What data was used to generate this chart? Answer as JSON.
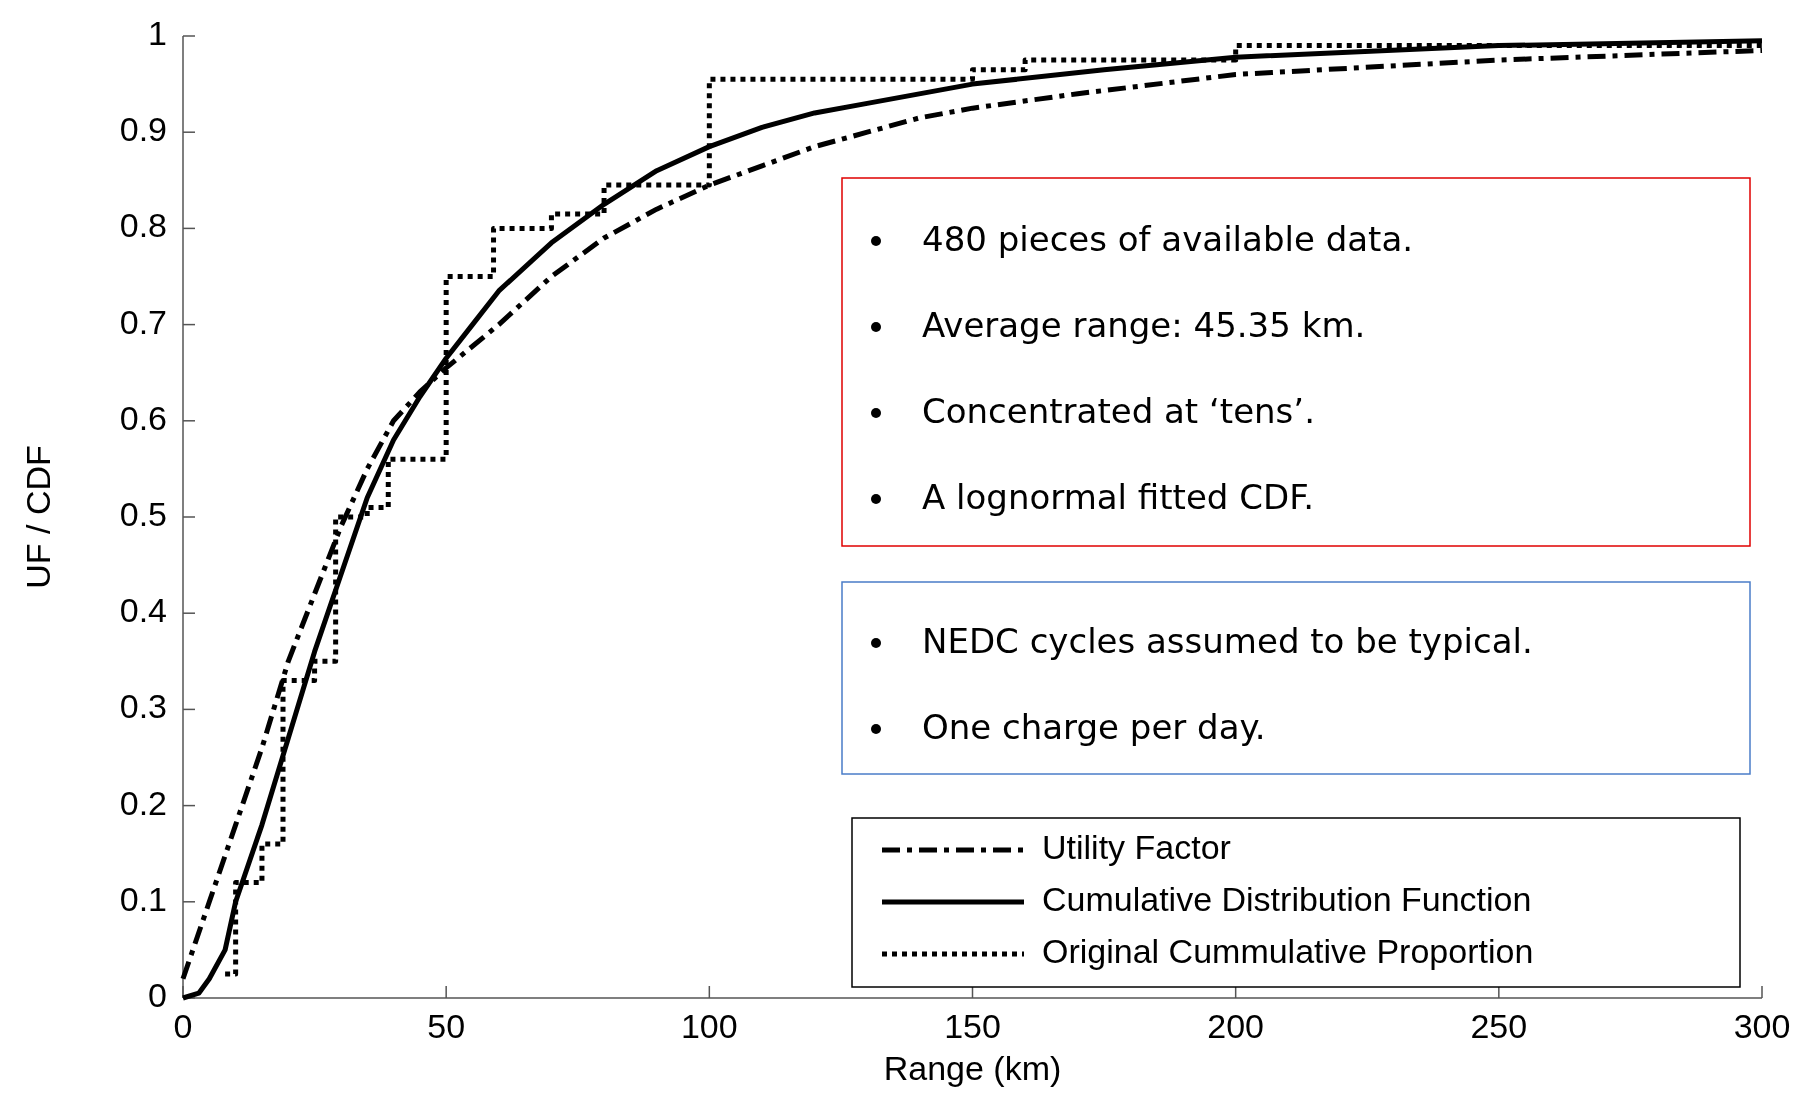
{
  "chart_data": {
    "type": "line",
    "xlabel": "Range (km)",
    "ylabel": "UF / CDF",
    "xlim": [
      0,
      300
    ],
    "ylim": [
      0,
      1
    ],
    "xticks": [
      0,
      50,
      100,
      150,
      200,
      250,
      300
    ],
    "yticks": [
      0,
      0.1,
      0.2,
      0.3,
      0.4,
      0.5,
      0.6,
      0.7,
      0.8,
      0.9,
      1
    ],
    "grid": false,
    "legend": "bottom right",
    "marker": "none",
    "series": [
      {
        "name": "Utility Factor",
        "color": "#000000",
        "line_style": "dashdot",
        "x": [
          0,
          5,
          10,
          15,
          20,
          25,
          30,
          35,
          40,
          45,
          50,
          60,
          70,
          80,
          90,
          100,
          110,
          120,
          130,
          140,
          150,
          170,
          200,
          250,
          300
        ],
        "values": [
          0.02,
          0.1,
          0.18,
          0.26,
          0.35,
          0.42,
          0.49,
          0.55,
          0.6,
          0.63,
          0.655,
          0.7,
          0.75,
          0.79,
          0.82,
          0.845,
          0.865,
          0.885,
          0.9,
          0.915,
          0.925,
          0.94,
          0.96,
          0.975,
          0.985
        ]
      },
      {
        "name": "Cumulative Distribution Function",
        "color": "#000000",
        "line_style": "solid",
        "x": [
          0,
          3,
          5,
          8,
          10,
          15,
          20,
          25,
          30,
          35,
          40,
          45,
          50,
          55,
          60,
          70,
          80,
          90,
          100,
          110,
          120,
          130,
          150,
          175,
          200,
          250,
          300
        ],
        "values": [
          0,
          0.005,
          0.02,
          0.05,
          0.1,
          0.18,
          0.27,
          0.36,
          0.44,
          0.52,
          0.58,
          0.625,
          0.665,
          0.7,
          0.735,
          0.785,
          0.825,
          0.86,
          0.885,
          0.905,
          0.92,
          0.93,
          0.95,
          0.965,
          0.978,
          0.99,
          0.995
        ]
      },
      {
        "name": "Original Cummulative Proportion",
        "type": "step",
        "color": "#000000",
        "line_style": "dotted",
        "x": [
          8,
          10,
          15,
          19,
          25,
          29,
          35,
          39,
          50,
          59,
          70,
          80,
          100,
          150,
          160,
          200,
          300
        ],
        "values": [
          0.025,
          0.12,
          0.16,
          0.33,
          0.35,
          0.5,
          0.51,
          0.56,
          0.75,
          0.8,
          0.815,
          0.845,
          0.955,
          0.965,
          0.975,
          0.99,
          0.99
        ]
      }
    ],
    "annotations": [
      "480 pieces of available data.",
      "Average range: 45.35 km.",
      "Concentrated at ‘tens’.",
      "A lognormal fitted CDF.",
      "NEDC cycles assumed to be typical.",
      "One charge per day."
    ]
  }
}
